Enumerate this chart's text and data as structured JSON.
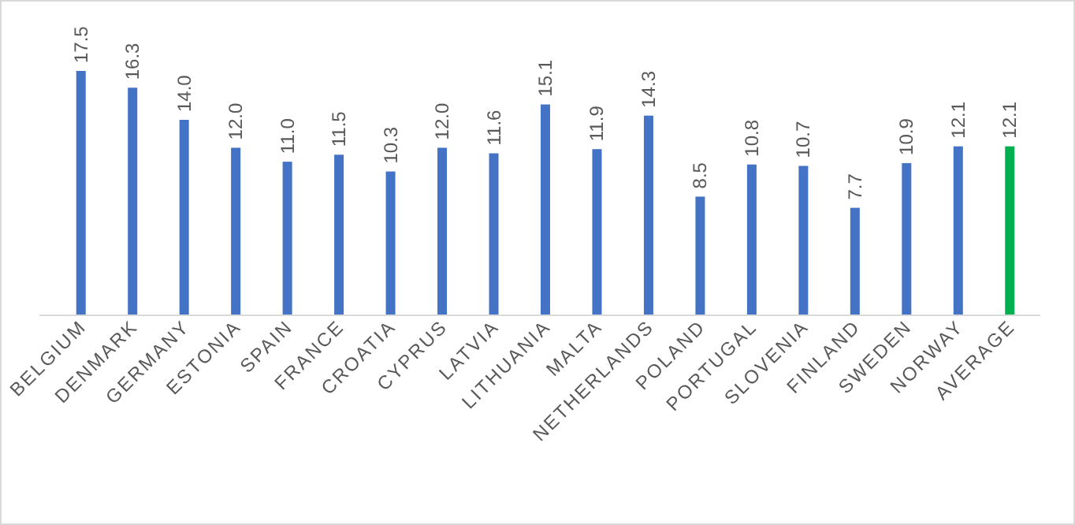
{
  "chart_data": {
    "type": "bar",
    "categories": [
      "BELGIUM",
      "DENMARK",
      "GERMANY",
      "ESTONIA",
      "SPAIN",
      "FRANCE",
      "CROATIA",
      "CYPRUS",
      "LATVIA",
      "LITHUANIA",
      "MALTA",
      "NETHERLANDS",
      "POLAND",
      "PORTUGAL",
      "SLOVENIA",
      "FINLAND",
      "SWEDEN",
      "NORWAY",
      "AVERAGE"
    ],
    "values": [
      17.5,
      16.3,
      14.0,
      12.0,
      11.0,
      11.5,
      10.3,
      12.0,
      11.6,
      15.1,
      11.9,
      14.3,
      8.5,
      10.8,
      10.7,
      7.7,
      10.9,
      12.1,
      12.1
    ],
    "value_labels": [
      "17.5",
      "16.3",
      "14.0",
      "12.0",
      "11.0",
      "11.5",
      "10.3",
      "12.0",
      "11.6",
      "15.1",
      "11.9",
      "14.3",
      "8.5",
      "10.8",
      "10.7",
      "7.7",
      "10.9",
      "12.1",
      "12.1"
    ],
    "colors": [
      "#4472c4",
      "#4472c4",
      "#4472c4",
      "#4472c4",
      "#4472c4",
      "#4472c4",
      "#4472c4",
      "#4472c4",
      "#4472c4",
      "#4472c4",
      "#4472c4",
      "#4472c4",
      "#4472c4",
      "#4472c4",
      "#4472c4",
      "#4472c4",
      "#4472c4",
      "#4472c4",
      "#00b050"
    ]
  }
}
